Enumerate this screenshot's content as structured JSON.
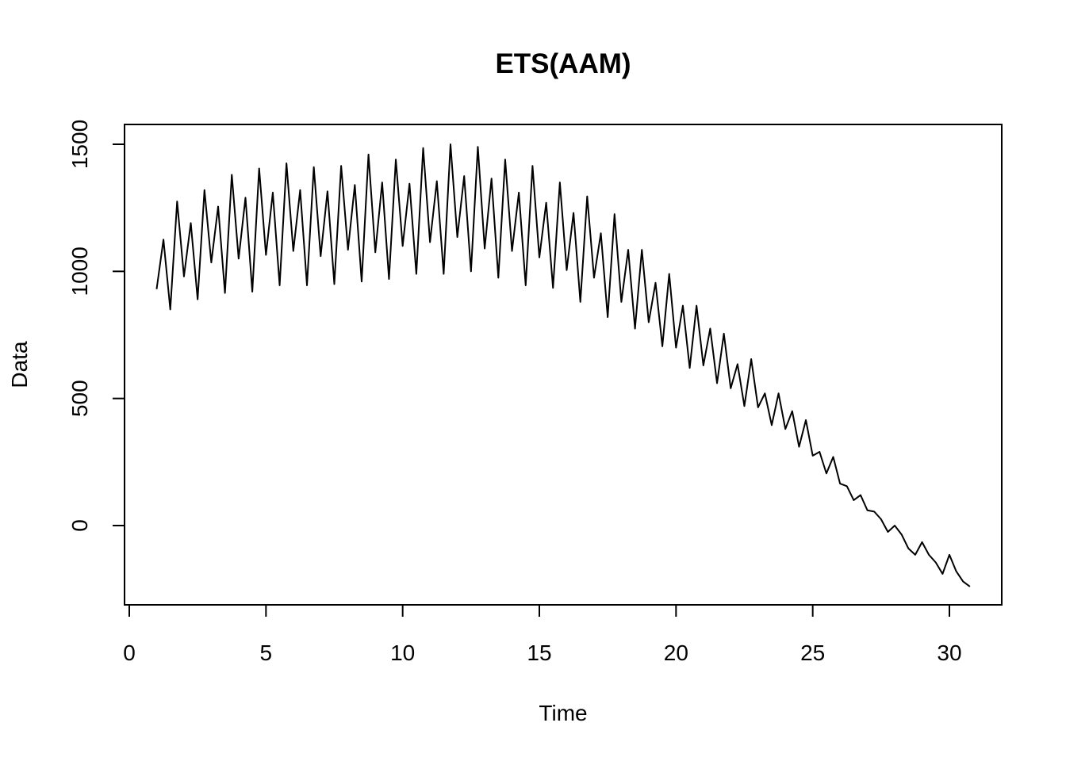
{
  "chart_data": {
    "type": "line",
    "title": "ETS(AAM)",
    "xlabel": "Time",
    "ylabel": "Data",
    "xlim": [
      0,
      31
    ],
    "ylim": [
      -250,
      1570
    ],
    "x_ticks": [
      0,
      5,
      10,
      15,
      20,
      25,
      30
    ],
    "x_tick_labels": [
      "0",
      "5",
      "10",
      "15",
      "20",
      "25",
      "30"
    ],
    "y_ticks": [
      0,
      500,
      1000,
      1500
    ],
    "y_tick_labels": [
      "0",
      "500",
      "1000",
      "1500"
    ],
    "grid": false,
    "frequency": 4,
    "start": 1,
    "series": [
      {
        "values": [
          930,
          1125,
          850,
          1275,
          980,
          1190,
          890,
          1320,
          1035,
          1255,
          915,
          1380,
          1050,
          1290,
          920,
          1405,
          1065,
          1310,
          945,
          1425,
          1080,
          1320,
          945,
          1410,
          1060,
          1315,
          950,
          1415,
          1085,
          1340,
          960,
          1460,
          1075,
          1350,
          970,
          1440,
          1100,
          1345,
          990,
          1485,
          1115,
          1355,
          990,
          1500,
          1135,
          1375,
          1000,
          1490,
          1090,
          1365,
          975,
          1440,
          1080,
          1310,
          945,
          1415,
          1055,
          1270,
          935,
          1350,
          1005,
          1230,
          880,
          1295,
          975,
          1150,
          820,
          1225,
          880,
          1085,
          775,
          1085,
          800,
          955,
          705,
          990,
          700,
          865,
          620,
          865,
          630,
          775,
          560,
          755,
          540,
          635,
          470,
          655,
          465,
          520,
          395,
          520,
          380,
          450,
          310,
          415,
          275,
          290,
          205,
          270,
          165,
          155,
          100,
          120,
          60,
          55,
          25,
          -25,
          0,
          -35,
          -90,
          -115,
          -65,
          -115,
          -145,
          -190,
          -115,
          -180,
          -220,
          -240
        ]
      }
    ]
  }
}
